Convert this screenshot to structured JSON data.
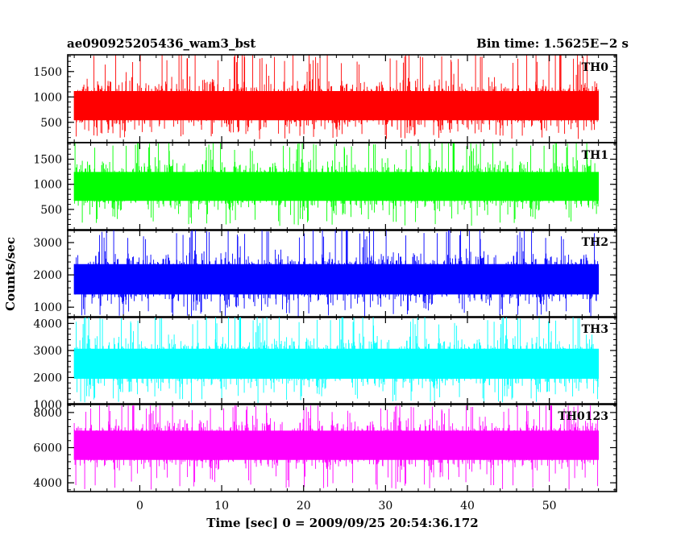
{
  "header": {
    "title": "ae090925205436_wam3_bst",
    "bin_time": "Bin time: 1.5625E−2 s"
  },
  "chart_data": {
    "type": "line",
    "xlabel": "Time [sec] 0 = 2009/09/25 20:54:36.172",
    "ylabel": "Counts/sec",
    "xlim": [
      -8.8,
      58.2
    ],
    "x_range_data": [
      -8.0,
      56.0
    ],
    "x_ticks": [
      0,
      10,
      20,
      30,
      40,
      50
    ],
    "x_tick_labels": [
      "0",
      "10",
      "20",
      "30",
      "40",
      "50"
    ],
    "grid": false,
    "panels": [
      {
        "name": "TH0",
        "color": "#ff0000",
        "ylim": [
          100,
          1830
        ],
        "y_ticks": [
          500,
          1000,
          1500
        ],
        "y_tick_labels": [
          "500",
          "1000",
          "1500"
        ],
        "mean": 850,
        "low": 170,
        "high": 1830
      },
      {
        "name": "TH1",
        "color": "#00ff00",
        "ylim": [
          80,
          1830
        ],
        "y_ticks": [
          500,
          1000,
          1500
        ],
        "y_tick_labels": [
          "500",
          "1000",
          "1500"
        ],
        "mean": 980,
        "low": 170,
        "high": 1830
      },
      {
        "name": "TH2",
        "color": "#0000ff",
        "ylim": [
          680,
          3400
        ],
        "y_ticks": [
          1000,
          2000,
          3000
        ],
        "y_tick_labels": [
          "1000",
          "2000",
          "3000"
        ],
        "mean": 1900,
        "low": 690,
        "high": 3400
      },
      {
        "name": "TH3",
        "color": "#00ffff",
        "ylim": [
          1000,
          4250
        ],
        "y_ticks": [
          1000,
          2000,
          3000,
          4000
        ],
        "y_tick_labels": [
          "1000",
          "2000",
          "3000",
          "4000"
        ],
        "mean": 2550,
        "low": 1050,
        "high": 4250
      },
      {
        "name": "TH0123",
        "color": "#ff00ff",
        "ylim": [
          3500,
          8500
        ],
        "y_ticks": [
          4000,
          6000,
          8000
        ],
        "y_tick_labels": [
          "4000",
          "6000",
          "8000"
        ],
        "mean": 6200,
        "low": 3600,
        "high": 8400
      }
    ]
  }
}
